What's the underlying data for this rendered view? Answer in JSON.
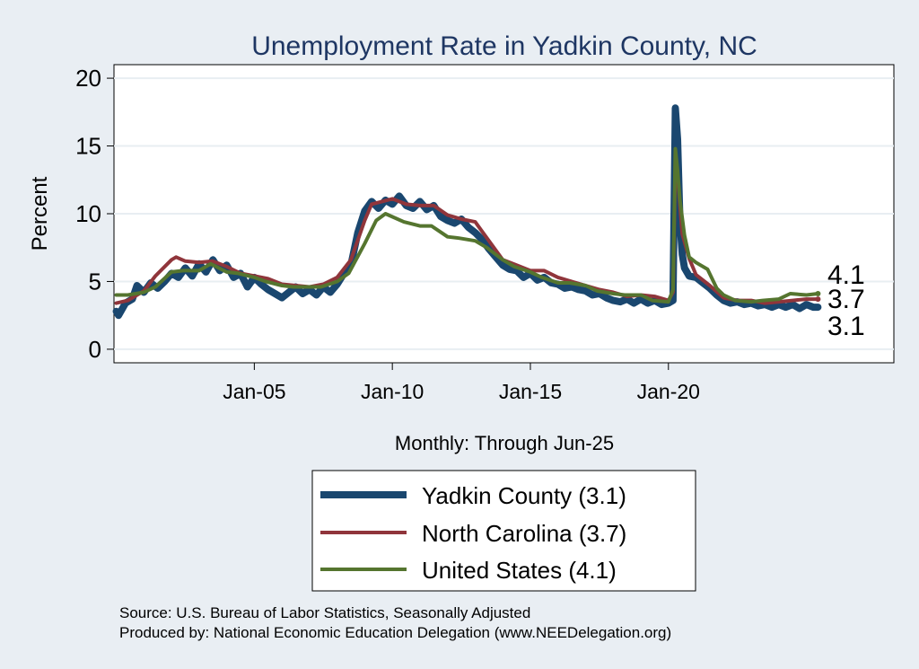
{
  "chart_data": {
    "type": "line",
    "title": "Unemployment Rate in Yadkin  County, NC",
    "xlabel": "Monthly: Through Jun-25",
    "ylabel": "Percent",
    "x_range": [
      "2000-01",
      "2025-06"
    ],
    "xlim": [
      "1999-12",
      "2028-03"
    ],
    "ylim": [
      -1,
      21
    ],
    "y_ticks": [
      0,
      5,
      10,
      15,
      20
    ],
    "x_ticks": [
      {
        "label": "Jan-05",
        "date": "2005-01"
      },
      {
        "label": "Jan-10",
        "date": "2010-01"
      },
      {
        "label": "Jan-15",
        "date": "2015-01"
      },
      {
        "label": "Jan-20",
        "date": "2020-01"
      }
    ],
    "grid": true,
    "legend_position": "bottom",
    "end_labels": [
      "4.1",
      "3.7",
      "3.1"
    ],
    "series": [
      {
        "name": "Yadkin  County (3.1)",
        "legend_label": "Yadkin  County (3.1)",
        "color": "#1a476f",
        "width": 8,
        "points": [
          [
            "2000-01",
            2.8
          ],
          [
            "2000-02",
            2.5
          ],
          [
            "2000-05",
            3.4
          ],
          [
            "2000-08",
            3.7
          ],
          [
            "2000-10",
            4.7
          ],
          [
            "2001-01",
            4.2
          ],
          [
            "2001-04",
            4.9
          ],
          [
            "2001-07",
            4.5
          ],
          [
            "2001-10",
            5.0
          ],
          [
            "2002-01",
            5.6
          ],
          [
            "2002-04",
            5.3
          ],
          [
            "2002-07",
            6.0
          ],
          [
            "2002-10",
            5.4
          ],
          [
            "2003-01",
            6.3
          ],
          [
            "2003-04",
            5.7
          ],
          [
            "2003-07",
            6.6
          ],
          [
            "2003-10",
            5.8
          ],
          [
            "2004-01",
            6.2
          ],
          [
            "2004-04",
            5.3
          ],
          [
            "2004-07",
            5.6
          ],
          [
            "2004-10",
            4.6
          ],
          [
            "2005-01",
            5.3
          ],
          [
            "2005-04",
            4.8
          ],
          [
            "2005-07",
            4.4
          ],
          [
            "2005-10",
            4.1
          ],
          [
            "2006-01",
            3.8
          ],
          [
            "2006-04",
            4.2
          ],
          [
            "2006-07",
            4.6
          ],
          [
            "2006-10",
            4.1
          ],
          [
            "2007-01",
            4.4
          ],
          [
            "2007-04",
            4.0
          ],
          [
            "2007-07",
            4.6
          ],
          [
            "2007-10",
            4.2
          ],
          [
            "2008-01",
            4.8
          ],
          [
            "2008-04",
            5.6
          ],
          [
            "2008-07",
            6.2
          ],
          [
            "2008-10",
            8.6
          ],
          [
            "2009-01",
            10.2
          ],
          [
            "2009-04",
            10.9
          ],
          [
            "2009-07",
            10.4
          ],
          [
            "2009-10",
            11.0
          ],
          [
            "2010-01",
            10.7
          ],
          [
            "2010-04",
            11.3
          ],
          [
            "2010-07",
            10.6
          ],
          [
            "2010-10",
            10.4
          ],
          [
            "2011-01",
            10.9
          ],
          [
            "2011-04",
            10.3
          ],
          [
            "2011-07",
            10.6
          ],
          [
            "2011-10",
            9.8
          ],
          [
            "2012-01",
            9.5
          ],
          [
            "2012-04",
            9.3
          ],
          [
            "2012-07",
            9.6
          ],
          [
            "2012-10",
            9.0
          ],
          [
            "2013-01",
            8.6
          ],
          [
            "2013-04",
            8.1
          ],
          [
            "2013-07",
            7.4
          ],
          [
            "2013-10",
            6.8
          ],
          [
            "2014-01",
            6.2
          ],
          [
            "2014-04",
            5.9
          ],
          [
            "2014-07",
            5.8
          ],
          [
            "2014-10",
            5.3
          ],
          [
            "2015-01",
            5.6
          ],
          [
            "2015-04",
            5.1
          ],
          [
            "2015-07",
            5.3
          ],
          [
            "2015-10",
            4.9
          ],
          [
            "2016-01",
            4.8
          ],
          [
            "2016-04",
            4.5
          ],
          [
            "2016-07",
            4.6
          ],
          [
            "2016-10",
            4.4
          ],
          [
            "2017-01",
            4.3
          ],
          [
            "2017-04",
            4.0
          ],
          [
            "2017-07",
            4.1
          ],
          [
            "2017-10",
            3.8
          ],
          [
            "2018-01",
            3.6
          ],
          [
            "2018-04",
            3.5
          ],
          [
            "2018-07",
            3.7
          ],
          [
            "2018-10",
            3.4
          ],
          [
            "2019-01",
            3.7
          ],
          [
            "2019-04",
            3.4
          ],
          [
            "2019-07",
            3.6
          ],
          [
            "2019-10",
            3.3
          ],
          [
            "2020-01",
            3.4
          ],
          [
            "2020-03",
            3.6
          ],
          [
            "2020-04",
            17.8
          ],
          [
            "2020-05",
            15.5
          ],
          [
            "2020-06",
            9.5
          ],
          [
            "2020-07",
            7.0
          ],
          [
            "2020-08",
            6.0
          ],
          [
            "2020-10",
            5.4
          ],
          [
            "2021-01",
            5.3
          ],
          [
            "2021-04",
            4.9
          ],
          [
            "2021-07",
            4.5
          ],
          [
            "2021-10",
            4.0
          ],
          [
            "2022-01",
            3.6
          ],
          [
            "2022-04",
            3.4
          ],
          [
            "2022-07",
            3.5
          ],
          [
            "2022-10",
            3.3
          ],
          [
            "2023-01",
            3.4
          ],
          [
            "2023-04",
            3.2
          ],
          [
            "2023-07",
            3.3
          ],
          [
            "2023-10",
            3.1
          ],
          [
            "2024-01",
            3.3
          ],
          [
            "2024-04",
            3.1
          ],
          [
            "2024-07",
            3.3
          ],
          [
            "2024-10",
            3.0
          ],
          [
            "2025-01",
            3.3
          ],
          [
            "2025-04",
            3.1
          ],
          [
            "2025-06",
            3.1
          ]
        ]
      },
      {
        "name": "North Carolina (3.7)",
        "legend_label": "North Carolina (3.7)",
        "color": "#90353b",
        "width": 4,
        "points": [
          [
            "2000-01",
            3.4
          ],
          [
            "2000-06",
            3.6
          ],
          [
            "2001-01",
            4.3
          ],
          [
            "2001-06",
            5.4
          ],
          [
            "2002-01",
            6.6
          ],
          [
            "2002-03",
            6.8
          ],
          [
            "2002-07",
            6.5
          ],
          [
            "2003-01",
            6.4
          ],
          [
            "2003-07",
            6.5
          ],
          [
            "2004-01",
            6.1
          ],
          [
            "2004-07",
            5.6
          ],
          [
            "2005-01",
            5.4
          ],
          [
            "2005-07",
            5.2
          ],
          [
            "2006-01",
            4.8
          ],
          [
            "2006-07",
            4.7
          ],
          [
            "2007-01",
            4.6
          ],
          [
            "2007-07",
            4.8
          ],
          [
            "2008-01",
            5.3
          ],
          [
            "2008-07",
            6.6
          ],
          [
            "2009-01",
            9.5
          ],
          [
            "2009-04",
            10.7
          ],
          [
            "2010-01",
            11.1
          ],
          [
            "2010-07",
            10.7
          ],
          [
            "2011-01",
            10.6
          ],
          [
            "2011-07",
            10.6
          ],
          [
            "2012-01",
            9.9
          ],
          [
            "2012-07",
            9.6
          ],
          [
            "2013-01",
            9.4
          ],
          [
            "2013-07",
            8.0
          ],
          [
            "2014-01",
            6.6
          ],
          [
            "2014-07",
            6.2
          ],
          [
            "2015-01",
            5.8
          ],
          [
            "2015-07",
            5.8
          ],
          [
            "2016-01",
            5.3
          ],
          [
            "2016-07",
            5.0
          ],
          [
            "2017-01",
            4.7
          ],
          [
            "2017-07",
            4.4
          ],
          [
            "2018-01",
            4.2
          ],
          [
            "2018-07",
            3.9
          ],
          [
            "2019-01",
            4.0
          ],
          [
            "2019-07",
            3.9
          ],
          [
            "2020-01",
            3.6
          ],
          [
            "2020-03",
            4.2
          ],
          [
            "2020-04",
            13.5
          ],
          [
            "2020-05",
            12.8
          ],
          [
            "2020-07",
            8.5
          ],
          [
            "2020-10",
            6.7
          ],
          [
            "2021-01",
            5.5
          ],
          [
            "2021-07",
            4.7
          ],
          [
            "2022-01",
            3.8
          ],
          [
            "2022-07",
            3.6
          ],
          [
            "2023-01",
            3.6
          ],
          [
            "2023-07",
            3.4
          ],
          [
            "2024-01",
            3.5
          ],
          [
            "2024-07",
            3.6
          ],
          [
            "2025-01",
            3.7
          ],
          [
            "2025-06",
            3.7
          ]
        ]
      },
      {
        "name": "United States (4.1)",
        "legend_label": "United States (4.1)",
        "color": "#55752f",
        "width": 4,
        "points": [
          [
            "2000-01",
            4.0
          ],
          [
            "2000-06",
            4.0
          ],
          [
            "2001-01",
            4.2
          ],
          [
            "2001-06",
            4.6
          ],
          [
            "2002-01",
            5.7
          ],
          [
            "2002-06",
            5.8
          ],
          [
            "2003-01",
            5.8
          ],
          [
            "2003-06",
            6.3
          ],
          [
            "2004-01",
            5.7
          ],
          [
            "2004-06",
            5.6
          ],
          [
            "2005-01",
            5.3
          ],
          [
            "2005-06",
            5.0
          ],
          [
            "2006-01",
            4.7
          ],
          [
            "2006-06",
            4.6
          ],
          [
            "2007-01",
            4.6
          ],
          [
            "2007-06",
            4.6
          ],
          [
            "2008-01",
            5.0
          ],
          [
            "2008-06",
            5.6
          ],
          [
            "2009-01",
            7.8
          ],
          [
            "2009-06",
            9.5
          ],
          [
            "2009-10",
            10.0
          ],
          [
            "2010-06",
            9.4
          ],
          [
            "2011-01",
            9.1
          ],
          [
            "2011-06",
            9.1
          ],
          [
            "2012-01",
            8.3
          ],
          [
            "2012-06",
            8.2
          ],
          [
            "2013-01",
            8.0
          ],
          [
            "2013-06",
            7.5
          ],
          [
            "2014-01",
            6.6
          ],
          [
            "2014-06",
            6.1
          ],
          [
            "2015-01",
            5.7
          ],
          [
            "2015-06",
            5.3
          ],
          [
            "2016-01",
            4.9
          ],
          [
            "2016-06",
            4.9
          ],
          [
            "2017-01",
            4.7
          ],
          [
            "2017-06",
            4.3
          ],
          [
            "2018-01",
            4.1
          ],
          [
            "2018-06",
            4.0
          ],
          [
            "2019-01",
            4.0
          ],
          [
            "2019-06",
            3.6
          ],
          [
            "2020-01",
            3.5
          ],
          [
            "2020-03",
            4.4
          ],
          [
            "2020-04",
            14.8
          ],
          [
            "2020-05",
            13.2
          ],
          [
            "2020-06",
            11.0
          ],
          [
            "2020-08",
            8.4
          ],
          [
            "2020-10",
            6.8
          ],
          [
            "2021-01",
            6.4
          ],
          [
            "2021-06",
            5.9
          ],
          [
            "2021-10",
            4.5
          ],
          [
            "2022-01",
            4.0
          ],
          [
            "2022-06",
            3.6
          ],
          [
            "2023-01",
            3.5
          ],
          [
            "2023-06",
            3.6
          ],
          [
            "2024-01",
            3.7
          ],
          [
            "2024-06",
            4.1
          ],
          [
            "2025-01",
            4.0
          ],
          [
            "2025-06",
            4.1
          ]
        ]
      }
    ]
  },
  "footer": {
    "source": "Source: U.S. Bureau of Labor Statistics, Seasonally Adjusted",
    "produced": "Produced by: National Economic Education Delegation (www.NEEDelegation.org)"
  }
}
